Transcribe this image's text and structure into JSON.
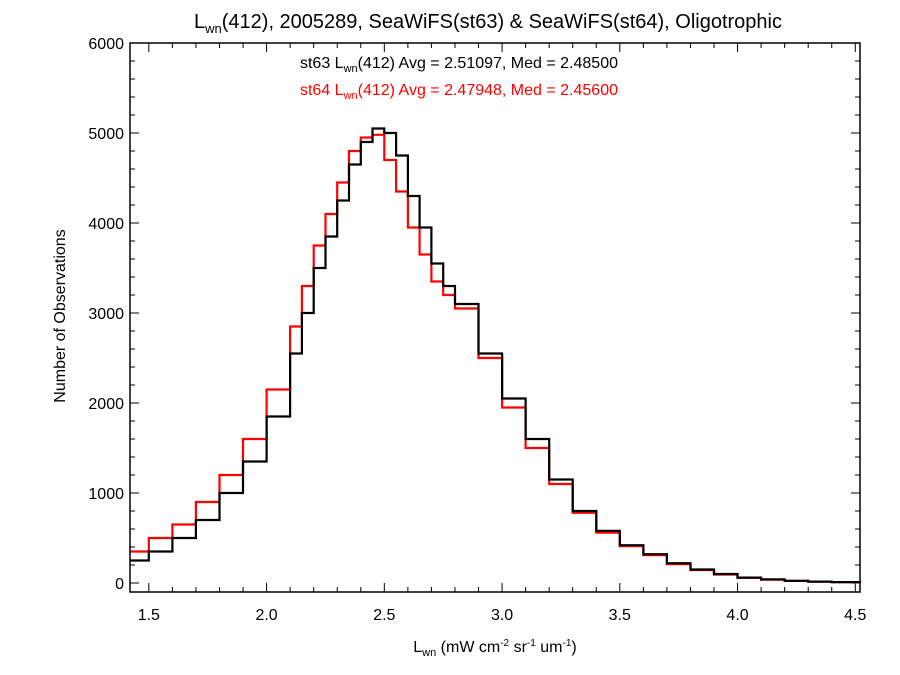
{
  "chart_data": {
    "type": "line",
    "title": {
      "base": "L",
      "sub": "wn",
      "rest": "(412), 2005289, SeaWiFS(st63) & SeaWiFS(st64), Oligotrophic"
    },
    "xlabel": {
      "base": "L",
      "sub": "wn",
      "part1": " (mW cm",
      "sup1": "-2",
      "part2": " sr",
      "sup2": "-1",
      "part3": " um",
      "sup3": "-1",
      "part4": ")"
    },
    "ylabel": "Number of Observations",
    "xlim": [
      1.42,
      4.52
    ],
    "ylim": [
      -100,
      6000
    ],
    "xticks": [
      "1.5",
      "2.0",
      "2.5",
      "3.0",
      "3.5",
      "4.0",
      "4.5"
    ],
    "yticks": [
      "0",
      "1000",
      "2000",
      "3000",
      "4000",
      "5000",
      "6000"
    ],
    "grid": false,
    "annotations": [
      {
        "series": "st63",
        "pre": "st63 L",
        "sub": "wn",
        "post": "(412) Avg = 2.51097, Med = 2.48500",
        "color": "#000000"
      },
      {
        "series": "st64",
        "pre": "st64 L",
        "sub": "wn",
        "post": "(412) Avg = 2.47948, Med = 2.45600",
        "color": "#ff0000"
      }
    ],
    "series": [
      {
        "color": "#000000",
        "x": [
          1.42,
          1.5,
          1.6,
          1.7,
          1.8,
          1.9,
          2.0,
          2.1,
          2.15,
          2.2,
          2.25,
          2.3,
          2.35,
          2.4,
          2.45,
          2.5,
          2.55,
          2.6,
          2.65,
          2.7,
          2.75,
          2.8,
          2.9,
          3.0,
          3.1,
          3.2,
          3.3,
          3.4,
          3.5,
          3.6,
          3.7,
          3.8,
          3.9,
          4.0,
          4.1,
          4.2,
          4.3,
          4.4,
          4.52
        ],
        "y": [
          250,
          350,
          500,
          700,
          1000,
          1350,
          1850,
          2550,
          3000,
          3500,
          3850,
          4250,
          4650,
          4900,
          5050,
          5000,
          4750,
          4300,
          3950,
          3550,
          3300,
          3100,
          2550,
          2050,
          1600,
          1150,
          800,
          580,
          420,
          320,
          220,
          150,
          100,
          60,
          40,
          25,
          15,
          10,
          5
        ]
      },
      {
        "color": "#ff0000",
        "x": [
          1.42,
          1.5,
          1.6,
          1.7,
          1.8,
          1.9,
          2.0,
          2.1,
          2.15,
          2.2,
          2.25,
          2.3,
          2.35,
          2.4,
          2.45,
          2.5,
          2.55,
          2.6,
          2.65,
          2.7,
          2.75,
          2.8,
          2.9,
          3.0,
          3.1,
          3.2,
          3.3,
          3.4,
          3.5,
          3.6,
          3.7,
          3.8,
          3.9,
          4.0,
          4.1,
          4.2,
          4.3,
          4.4,
          4.52
        ],
        "y": [
          350,
          500,
          650,
          900,
          1200,
          1600,
          2150,
          2850,
          3300,
          3750,
          4100,
          4450,
          4800,
          4950,
          4980,
          4700,
          4350,
          3950,
          3650,
          3350,
          3200,
          3050,
          2500,
          1950,
          1500,
          1100,
          780,
          560,
          410,
          310,
          210,
          145,
          95,
          58,
          38,
          24,
          14,
          9,
          5
        ]
      }
    ]
  }
}
